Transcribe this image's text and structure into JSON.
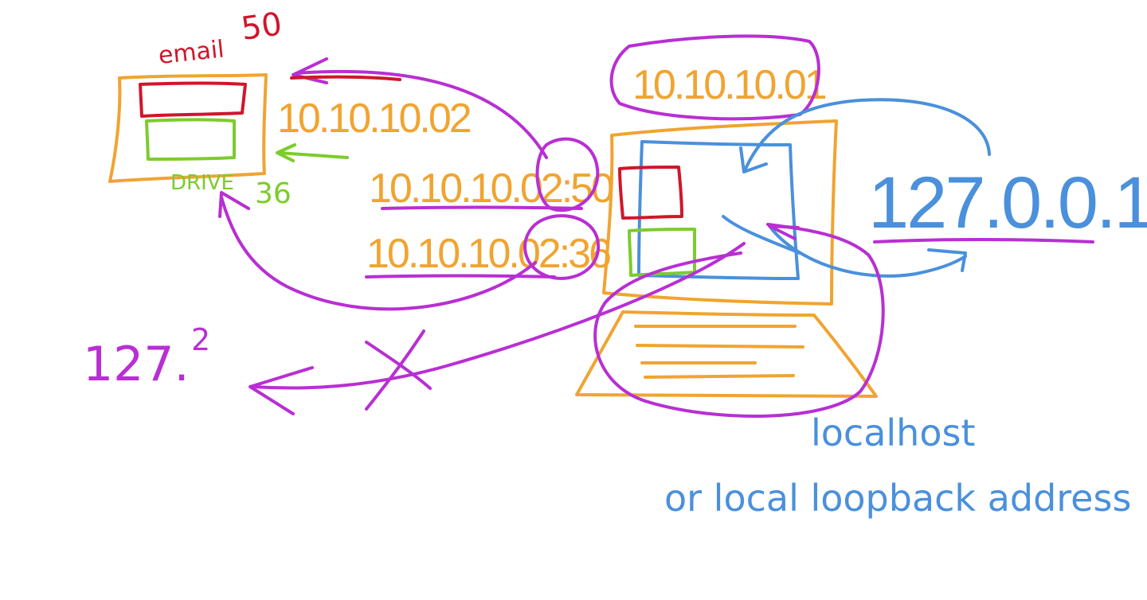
{
  "colors": {
    "orange": "#f0a430",
    "purple": "#b82fd3",
    "red": "#d0162a",
    "green": "#7ccc2c",
    "blue": "#4a90dc"
  },
  "labels": {
    "email": "email",
    "email_port": "50",
    "drive": "DRIVE",
    "drive_port": "36",
    "remote_ip": "10.10.10.02",
    "remote_ip_port_50": "10.10.10.02:50",
    "remote_ip_port_36": "10.10.10.02:36",
    "local_ip": "10.10.10.01",
    "loopback_ip": "127.0.0.1",
    "loopback_short": "127.",
    "loopback_superscript": "2",
    "localhost": "localhost",
    "loopback_caption": "or local loopback address"
  }
}
